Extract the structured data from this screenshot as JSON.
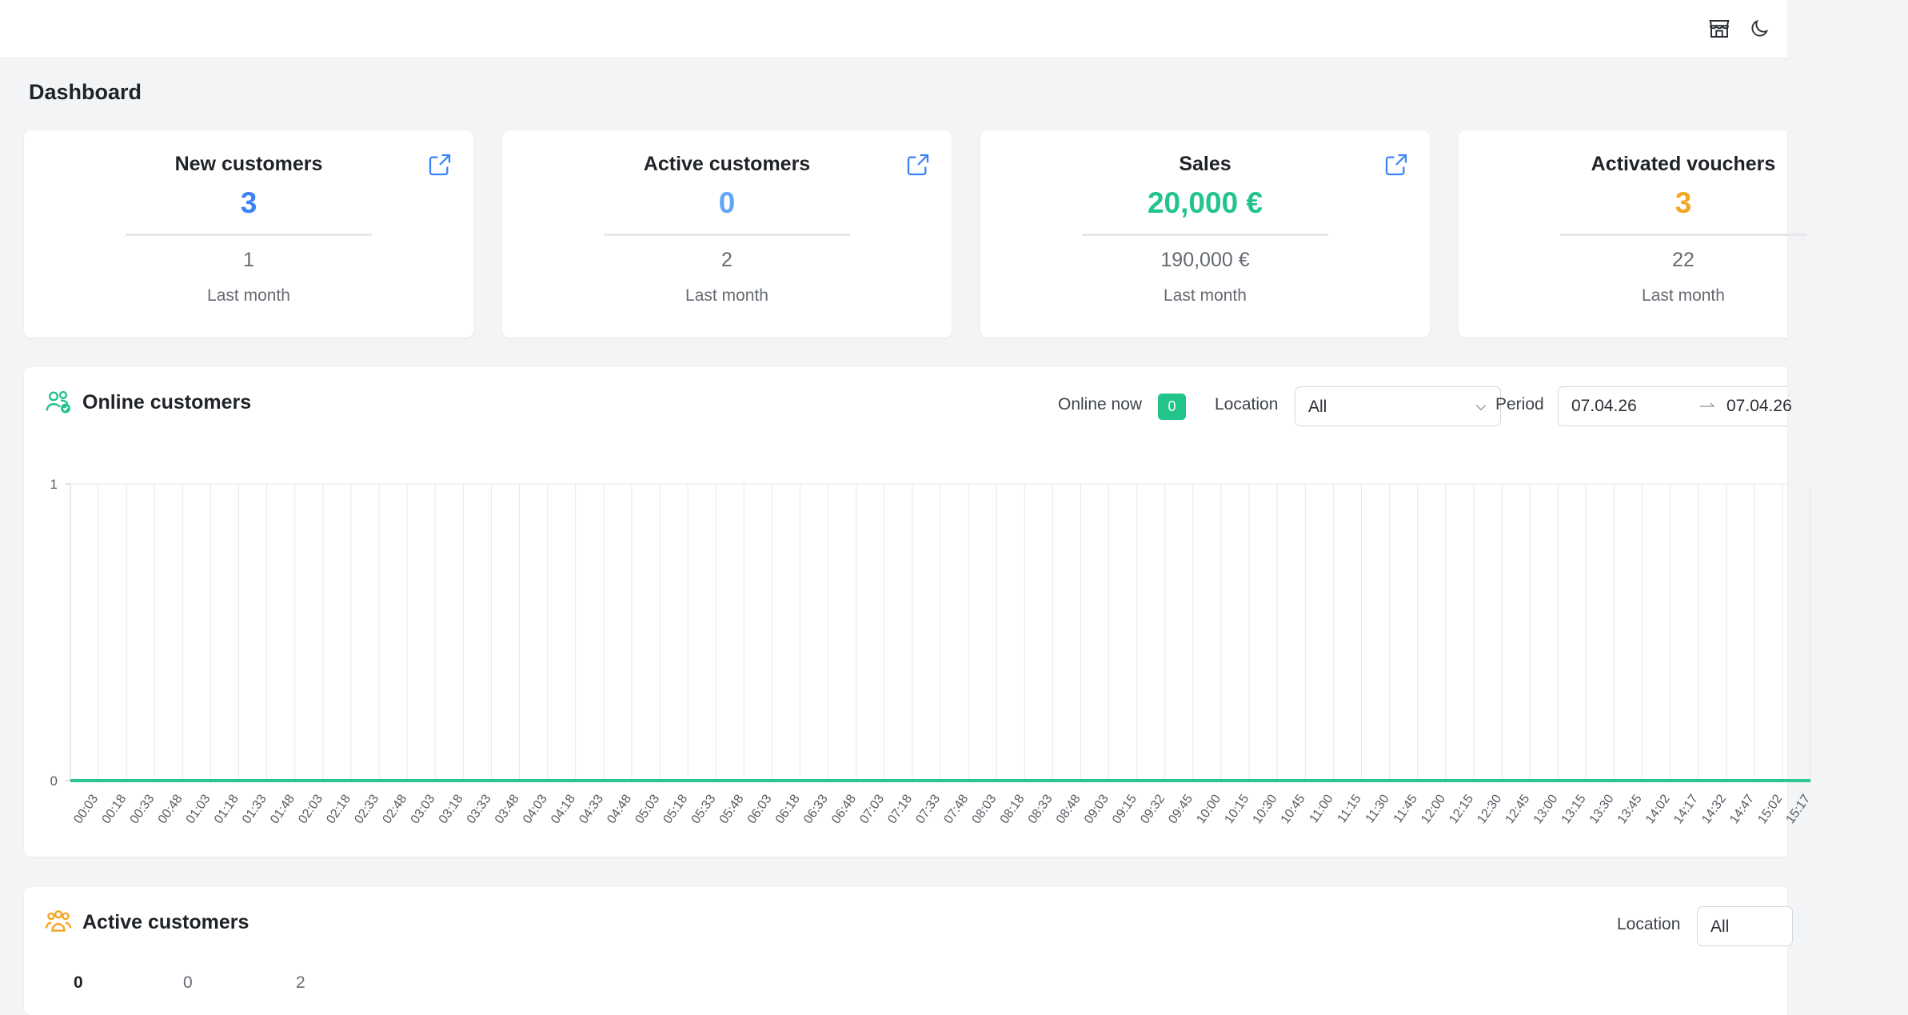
{
  "header": {
    "icons": [
      "store-icon",
      "moon-icon"
    ]
  },
  "page": {
    "title": "Dashboard"
  },
  "kpis": [
    {
      "title": "New customers",
      "value": "3",
      "value_color": "#3b82f6",
      "previous": "1",
      "period": "Last month"
    },
    {
      "title": "Active customers",
      "value": "0",
      "value_color": "#60a5fa",
      "previous": "2",
      "period": "Last month"
    },
    {
      "title": "Sales",
      "value": "20,000 €",
      "value_color": "#22c48a",
      "previous": "190,000 €",
      "period": "Last month"
    },
    {
      "title": "Activated vouchers",
      "value": "3",
      "value_color": "#f5a623",
      "previous": "22",
      "period": "Last month"
    }
  ],
  "online": {
    "title": "Online customers",
    "online_now_label": "Online now",
    "online_now_value": "0",
    "location_label": "Location",
    "location_value": "All",
    "period_label": "Period",
    "period_start": "07.04.26",
    "period_end": "07.04.26"
  },
  "chart_data": {
    "type": "line",
    "x": [
      "00:03",
      "00:18",
      "00:33",
      "00:48",
      "01:03",
      "01:18",
      "01:33",
      "01:48",
      "02:03",
      "02:18",
      "02:33",
      "02:48",
      "03:03",
      "03:18",
      "03:33",
      "03:48",
      "04:03",
      "04:18",
      "04:33",
      "04:48",
      "05:03",
      "05:18",
      "05:33",
      "05:48",
      "06:03",
      "06:18",
      "06:33",
      "06:48",
      "07:03",
      "07:18",
      "07:33",
      "07:48",
      "08:03",
      "08:18",
      "08:33",
      "08:48",
      "09:03",
      "09:15",
      "09:32",
      "09:45",
      "10:00",
      "10:15",
      "10:30",
      "10:45",
      "11:00",
      "11:15",
      "11:30",
      "11:45",
      "12:00",
      "12:15",
      "12:30",
      "12:45",
      "13:00",
      "13:15",
      "13:30",
      "13:45",
      "14:02",
      "14:17",
      "14:32",
      "14:47",
      "15:02",
      "15:17"
    ],
    "series": [
      {
        "values": [
          0,
          0,
          0,
          0,
          0,
          0,
          0,
          0,
          0,
          0,
          0,
          0,
          0,
          0,
          0,
          0,
          0,
          0,
          0,
          0,
          0,
          0,
          0,
          0,
          0,
          0,
          0,
          0,
          0,
          0,
          0,
          0,
          0,
          0,
          0,
          0,
          0,
          0,
          0,
          0,
          0,
          0,
          0,
          0,
          0,
          0,
          0,
          0,
          0,
          0,
          0,
          0,
          0,
          0,
          0,
          0,
          0,
          0,
          0,
          0,
          0,
          0
        ]
      }
    ],
    "ylim": [
      0,
      1
    ],
    "yticks": [
      "1",
      "0"
    ],
    "grid": true,
    "line_color": "#2cc68f"
  },
  "active": {
    "title": "Active customers",
    "location_label": "Location",
    "location_value": "All",
    "stats": [
      "0",
      "0",
      "2"
    ]
  }
}
